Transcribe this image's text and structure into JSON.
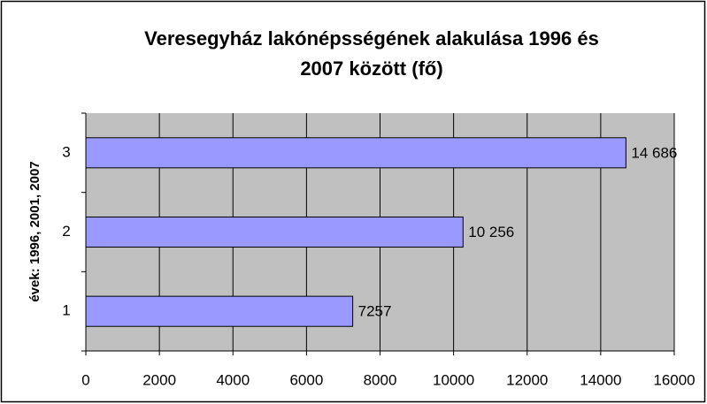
{
  "chart_data": {
    "type": "hbar",
    "title": [
      "Veresegyház lakónépsségének alakulása 1996 és",
      "2007 között (fő)"
    ],
    "y_label": "évek: 1996, 2001, 2007",
    "categories": [
      "1",
      "2",
      "3"
    ],
    "values": [
      7257,
      10256,
      14686
    ],
    "value_labels": [
      "7257",
      "10 256",
      "14 686"
    ],
    "color": "#9999ff",
    "xlim": [
      0,
      16000
    ],
    "xticks": [
      0,
      2000,
      4000,
      6000,
      8000,
      10000,
      12000,
      14000,
      16000
    ],
    "grid": true
  }
}
